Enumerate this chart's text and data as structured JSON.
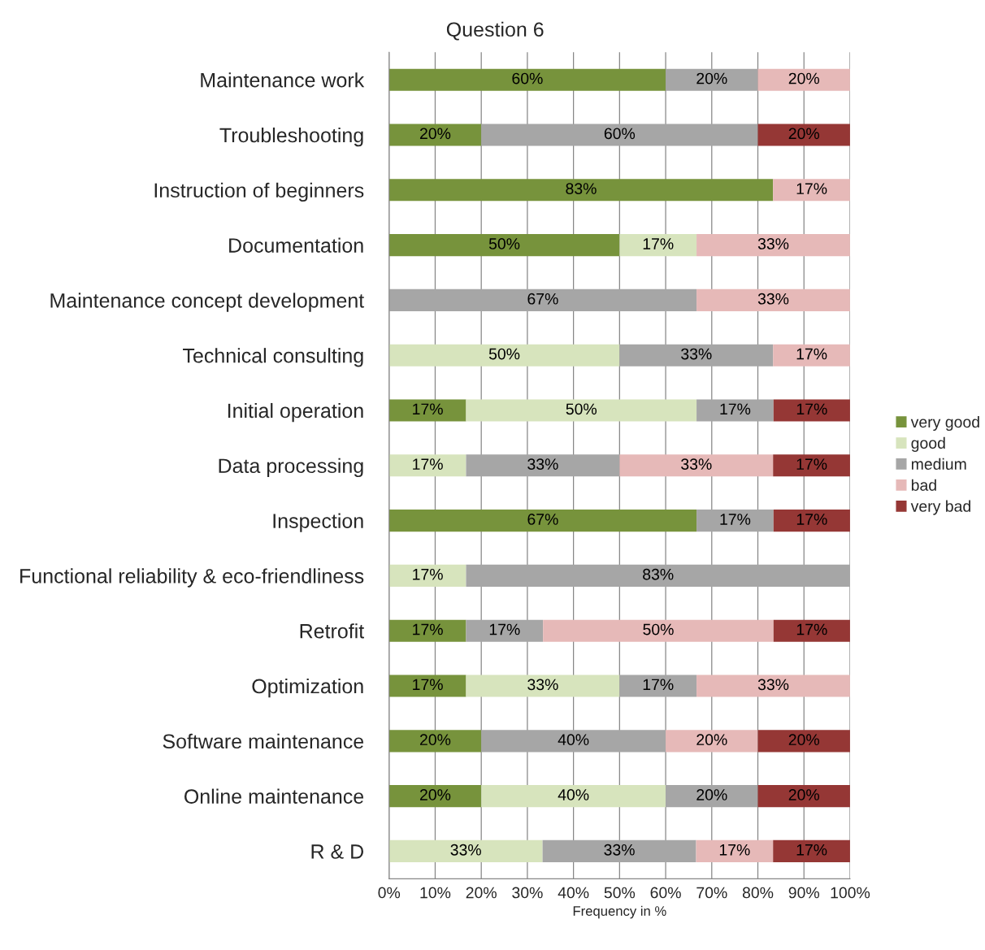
{
  "chart_data": {
    "type": "bar",
    "orientation": "horizontal",
    "stacked": true,
    "title": "Question 6",
    "xlabel": "Frequency in %",
    "categories": [
      "Maintenance work",
      "Troubleshooting",
      "Instruction of beginners",
      "Documentation",
      "Maintenance concept development",
      "Technical consulting",
      "Initial operation",
      "Data processing",
      "Inspection",
      "Functional reliability & eco-friendliness",
      "Retrofit",
      "Optimization",
      "Software maintenance",
      "Online maintenance",
      "R & D"
    ],
    "series": [
      {
        "name": "very good",
        "color": "#77933c",
        "values": [
          60,
          20,
          83.3,
          50,
          0,
          0,
          16.7,
          0,
          66.7,
          0,
          16.7,
          16.7,
          20,
          20,
          0
        ],
        "value_labels": [
          "60%",
          "20%",
          "83%",
          "50%",
          null,
          null,
          "17%",
          null,
          "67%",
          null,
          "17%",
          "17%",
          "20%",
          "20%",
          null
        ]
      },
      {
        "name": "good",
        "color": "#d7e4bd",
        "values": [
          0,
          0,
          0,
          16.7,
          0,
          50,
          50,
          16.7,
          0,
          16.7,
          0,
          33.3,
          0,
          40,
          33.3
        ],
        "value_labels": [
          null,
          null,
          null,
          "17%",
          null,
          "50%",
          "50%",
          "17%",
          null,
          "17%",
          null,
          "33%",
          null,
          "40%",
          "33%"
        ]
      },
      {
        "name": "medium",
        "color": "#a6a6a6",
        "values": [
          20,
          60,
          0,
          0,
          66.7,
          33.3,
          16.7,
          33.3,
          16.7,
          83.3,
          16.7,
          16.7,
          40,
          20,
          33.3
        ],
        "value_labels": [
          "20%",
          "60%",
          null,
          null,
          "67%",
          "33%",
          "17%",
          "33%",
          "17%",
          "83%",
          "17%",
          "17%",
          "40%",
          "20%",
          "33%"
        ]
      },
      {
        "name": "bad",
        "color": "#e6b9b8",
        "values": [
          20,
          0,
          16.7,
          33.3,
          33.3,
          16.7,
          0,
          33.3,
          0,
          0,
          50,
          33.3,
          20,
          0,
          16.7
        ],
        "value_labels": [
          "20%",
          null,
          "17%",
          "33%",
          "33%",
          "17%",
          null,
          "33%",
          null,
          null,
          "50%",
          "33%",
          "20%",
          null,
          "17%"
        ]
      },
      {
        "name": "very bad",
        "color": "#953735",
        "values": [
          0,
          20,
          0,
          0,
          0,
          0,
          16.6,
          16.7,
          16.6,
          0,
          16.6,
          0,
          20,
          20,
          16.7
        ],
        "value_labels": [
          null,
          "20%",
          null,
          null,
          null,
          null,
          "17%",
          "17%",
          "17%",
          null,
          "17%",
          null,
          "20%",
          "20%",
          "17%"
        ]
      }
    ],
    "xlim": [
      0,
      100
    ],
    "xticks": [
      {
        "value": 0,
        "label": "0%"
      },
      {
        "value": 10,
        "label": "10%"
      },
      {
        "value": 20,
        "label": "20%"
      },
      {
        "value": 30,
        "label": "30%"
      },
      {
        "value": 40,
        "label": "40%"
      },
      {
        "value": 50,
        "label": "50%"
      },
      {
        "value": 60,
        "label": "60%"
      },
      {
        "value": 70,
        "label": "70%"
      },
      {
        "value": 80,
        "label": "80%"
      },
      {
        "value": 90,
        "label": "90%"
      },
      {
        "value": 100,
        "label": "100%"
      }
    ],
    "grid": "x",
    "legend": "right"
  }
}
